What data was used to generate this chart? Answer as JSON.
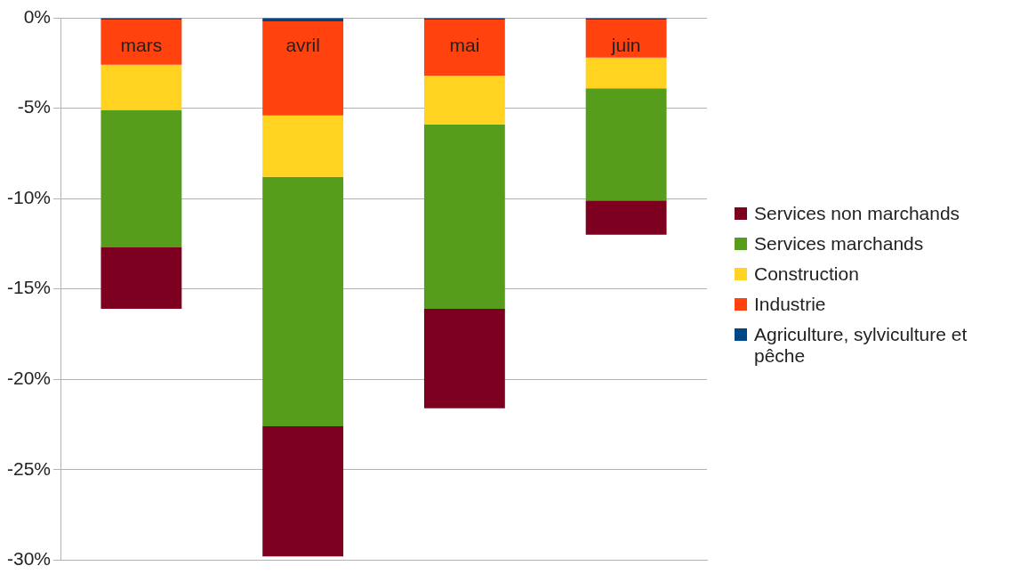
{
  "chart_data": {
    "type": "bar",
    "stacked": true,
    "categories": [
      "mars",
      "avril",
      "mai",
      "juin"
    ],
    "series": [
      {
        "name": "Agriculture, sylviculture et pêche",
        "color": "#004586",
        "values": [
          -0.1,
          -0.2,
          -0.1,
          -0.1
        ]
      },
      {
        "name": "Industrie",
        "color": "#ff420e",
        "values": [
          -2.5,
          -5.2,
          -3.1,
          -2.1
        ]
      },
      {
        "name": "Construction",
        "color": "#ffd320",
        "values": [
          -2.5,
          -3.4,
          -2.7,
          -1.7
        ]
      },
      {
        "name": "Services marchands",
        "color": "#579d1c",
        "values": [
          -7.6,
          -13.8,
          -10.2,
          -6.2
        ]
      },
      {
        "name": "Services non marchands",
        "color": "#7e0021",
        "values": [
          -3.4,
          -7.2,
          -5.5,
          -1.9
        ]
      }
    ],
    "ylim": [
      -30,
      0
    ],
    "yticks": [
      {
        "value": 0,
        "label": "0%"
      },
      {
        "value": -5,
        "label": "-5%"
      },
      {
        "value": -10,
        "label": "-10%"
      },
      {
        "value": -15,
        "label": "-15%"
      },
      {
        "value": -20,
        "label": "-20%"
      },
      {
        "value": -25,
        "label": "-25%"
      },
      {
        "value": -30,
        "label": "-30%"
      }
    ],
    "grid": "y",
    "legend": "right"
  }
}
